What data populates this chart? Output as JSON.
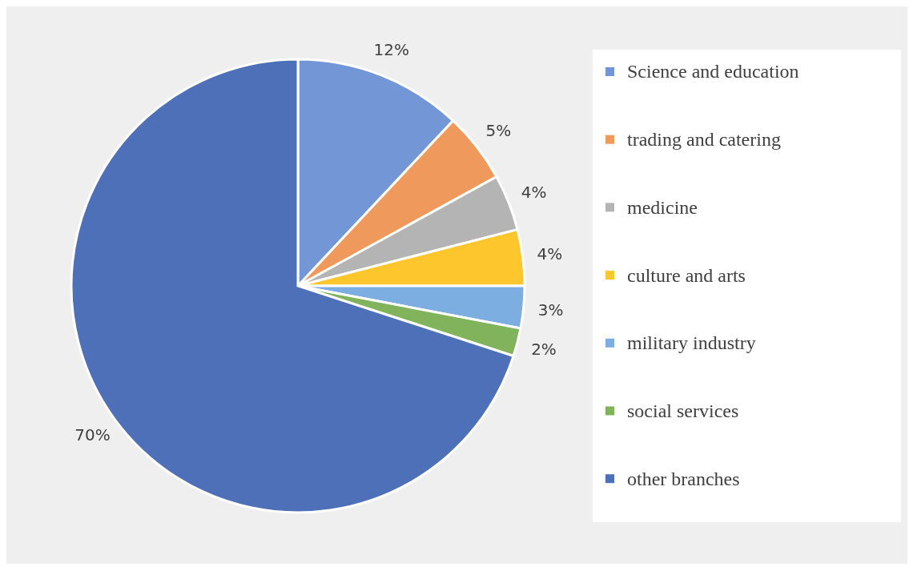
{
  "chart_data": {
    "type": "pie",
    "categories": [
      "Science and education",
      "trading and catering",
      "medicine",
      "culture and arts",
      "military industry",
      "social services",
      "other branches"
    ],
    "values": [
      12,
      5,
      4,
      4,
      3,
      2,
      70
    ],
    "value_labels": [
      "12%",
      "5%",
      "4%",
      "4%",
      "3%",
      "2%",
      "70%"
    ],
    "colors": [
      "#7396d6",
      "#ef9a5c",
      "#b4b4b4",
      "#fcc62c",
      "#7daee2",
      "#80b35c",
      "#4d70b8"
    ],
    "legend": "right"
  }
}
